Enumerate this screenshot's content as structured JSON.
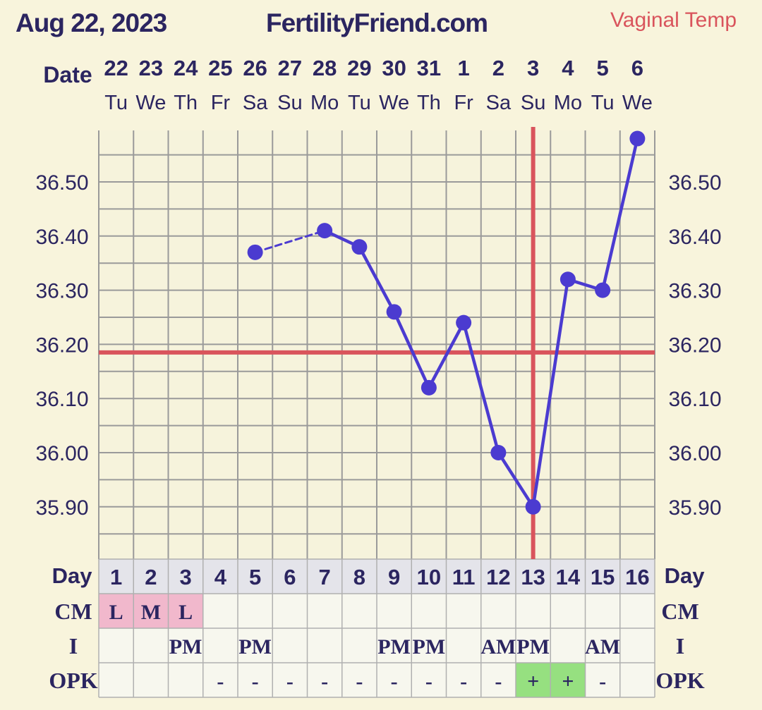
{
  "header": {
    "date": "Aug 22, 2023",
    "site": "FertilityFriend.com",
    "temp_type": "Vaginal Temp"
  },
  "colors": {
    "background": "#f8f4dc",
    "grid_bg": "#f6f3dc",
    "grid_line": "#9a9a9a",
    "line": "#4b3bd0",
    "coverline": "#d9545c",
    "text": "#2b2560",
    "menses": "#f1b8cc",
    "opk_positive": "#96e080"
  },
  "chart_data": {
    "type": "line",
    "title": "",
    "date_row_label": "Date",
    "day_row_label": "Day",
    "dates": [
      "22",
      "23",
      "24",
      "25",
      "26",
      "27",
      "28",
      "29",
      "30",
      "31",
      "1",
      "2",
      "3",
      "4",
      "5",
      "6"
    ],
    "weekdays": [
      "Tu",
      "We",
      "Th",
      "Fr",
      "Sa",
      "Su",
      "Mo",
      "Tu",
      "We",
      "Th",
      "Fr",
      "Sa",
      "Su",
      "Mo",
      "Tu",
      "We"
    ],
    "cycle_days": [
      "1",
      "2",
      "3",
      "4",
      "5",
      "6",
      "7",
      "8",
      "9",
      "10",
      "11",
      "12",
      "13",
      "14",
      "15",
      "16"
    ],
    "y_ticks": [
      "35.90",
      "36.00",
      "36.10",
      "36.20",
      "36.30",
      "36.40",
      "36.50"
    ],
    "ylim": [
      35.8,
      36.6
    ],
    "series": [
      {
        "temps": [
          null,
          null,
          null,
          null,
          36.37,
          null,
          36.41,
          36.38,
          36.26,
          36.12,
          36.24,
          36.0,
          35.9,
          36.32,
          36.3,
          36.58
        ],
        "dashed_segments": [
          [
            4,
            6
          ]
        ]
      }
    ],
    "coverline": 36.185,
    "ovulation_day_index": 12,
    "rows": [
      {
        "label": "CM",
        "values": [
          "L",
          "M",
          "L",
          "",
          "",
          "",
          "",
          "",
          "",
          "",
          "",
          "",
          "",
          "",
          "",
          ""
        ]
      },
      {
        "label": "I",
        "values": [
          "",
          "",
          "PM",
          "",
          "PM",
          "",
          "",
          "",
          "PM",
          "PM",
          "",
          "AM",
          "PM",
          "",
          "AM",
          ""
        ]
      },
      {
        "label": "OPK",
        "values": [
          "",
          "",
          "",
          "-",
          "-",
          "-",
          "-",
          "-",
          "-",
          "-",
          "-",
          "-",
          "+",
          "+",
          "-",
          ""
        ]
      }
    ]
  }
}
